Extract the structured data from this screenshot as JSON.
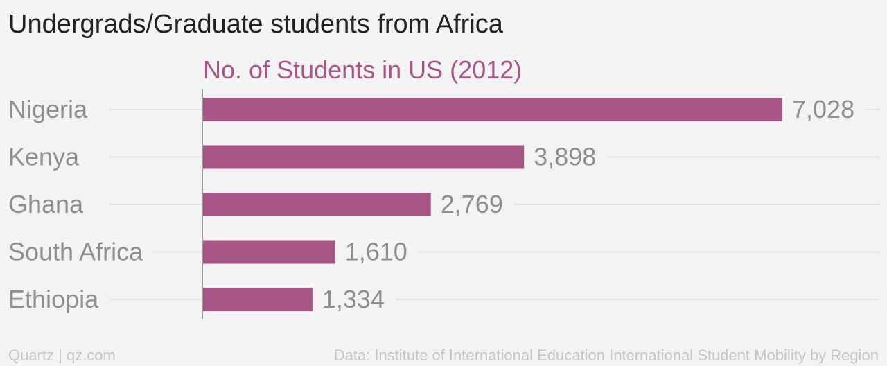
{
  "chart_data": {
    "type": "bar",
    "orientation": "horizontal",
    "title": "Undergrads/Graduate students from Africa",
    "series_title": "No. of Students in US (2012)",
    "categories": [
      "Nigeria",
      "Kenya",
      "Ghana",
      "South Africa",
      "Ethiopia"
    ],
    "values": [
      7028,
      3898,
      2769,
      1610,
      1334
    ],
    "value_labels": [
      "7,028",
      "3,898",
      "2,769",
      "1,610",
      "1,334"
    ],
    "xlim": [
      0,
      7028
    ],
    "grid": true,
    "legend": "none"
  },
  "footer": {
    "source_left": "Quartz | qz.com",
    "source_right": "Data: Institute of International Education International Student Mobility by Region"
  },
  "colors": {
    "bar": "#a85686",
    "series_title": "#a85686",
    "title": "#222222",
    "label": "#8f8f8f",
    "gridline": "#e3e3e3",
    "axis": "#9a9a9a",
    "footer": "#c6c6c6",
    "background": "#f3f3f3"
  }
}
